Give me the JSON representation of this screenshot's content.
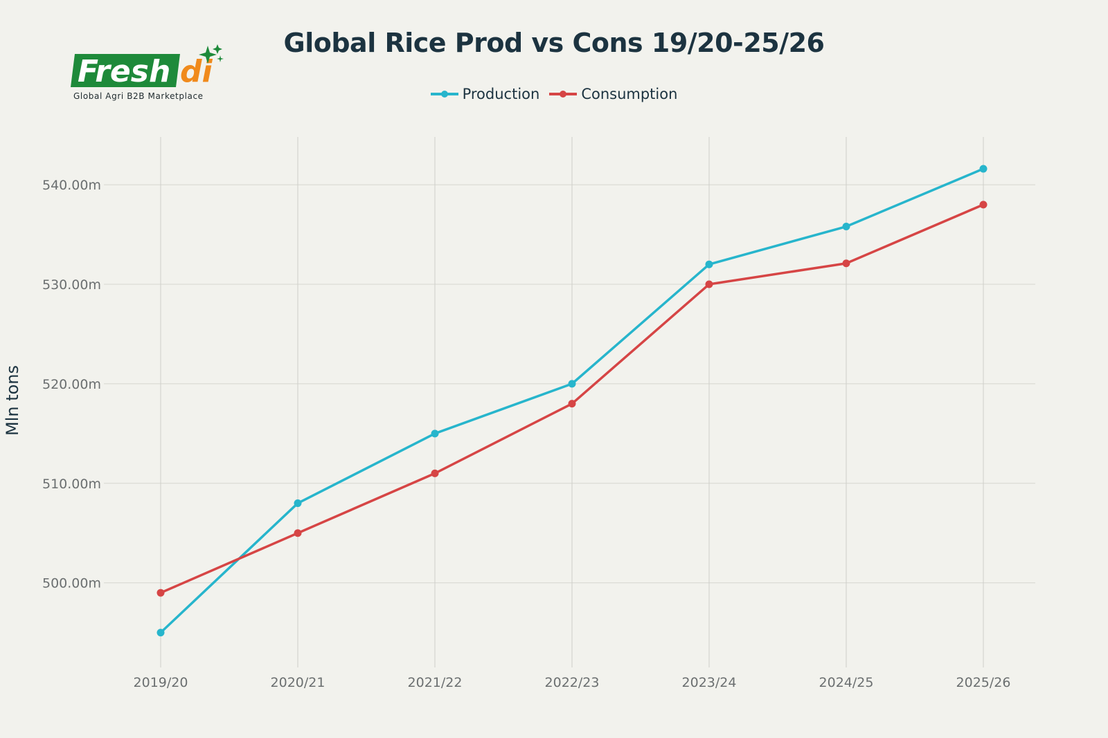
{
  "logo": {
    "text": "Freshdi",
    "tagline": "Global Agri B2B Marketplace"
  },
  "chart_data": {
    "type": "line",
    "title": "Global Rice Prod vs Cons 19/20-25/26",
    "xlabel": "",
    "ylabel": "Mln tons",
    "categories": [
      "2019/20",
      "2020/21",
      "2021/22",
      "2022/23",
      "2023/24",
      "2024/25",
      "2025/26"
    ],
    "series": [
      {
        "name": "Production",
        "color": "#27b5cc",
        "values": [
          495.0,
          508.0,
          515.0,
          520.0,
          532.0,
          535.8,
          541.6
        ]
      },
      {
        "name": "Consumption",
        "color": "#d64545",
        "values": [
          499.0,
          505.0,
          511.0,
          518.0,
          530.0,
          532.1,
          538.0
        ]
      }
    ],
    "yticks": [
      500,
      510,
      520,
      530,
      540
    ],
    "ytick_labels": [
      "500.00m",
      "510.00m",
      "520.00m",
      "530.00m",
      "540.00m"
    ],
    "ylim": [
      491.5,
      544.8
    ],
    "grid": true,
    "legend_position": "top-center"
  }
}
